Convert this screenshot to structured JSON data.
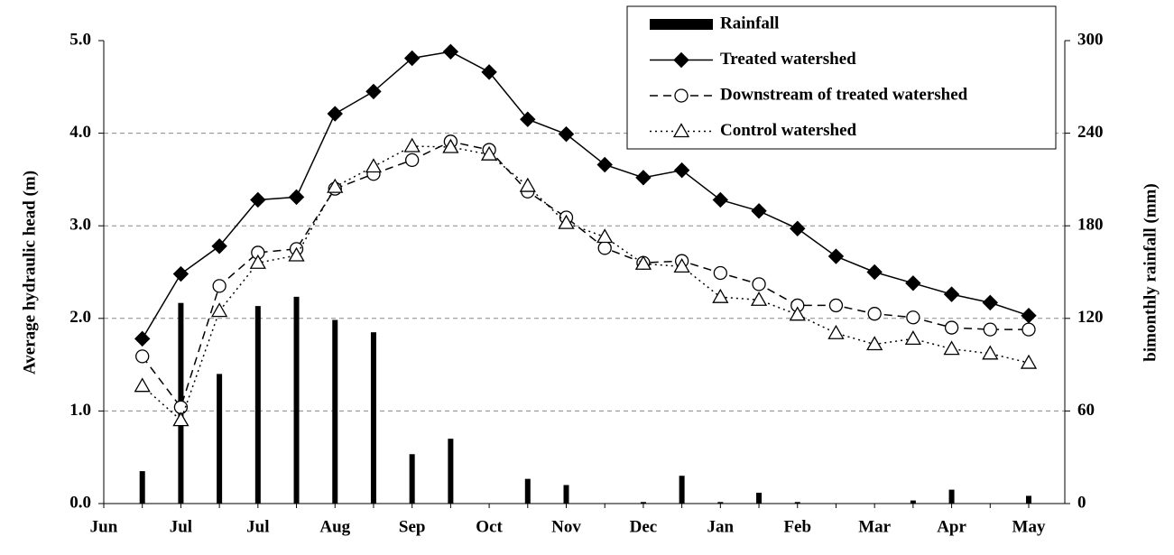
{
  "chart_data": {
    "type": "line",
    "y_label": "Average hydraulic head (m)",
    "y2_label": "bimonthly rainfall (mm)",
    "categories": [
      "Jun",
      null,
      "Jul",
      null,
      "Jul",
      null,
      "Aug",
      null,
      "Sep",
      null,
      "Oct",
      null,
      "Nov",
      null,
      "Dec",
      null,
      "Jan",
      null,
      "Feb",
      null,
      "Mar",
      null,
      "Apr",
      null,
      "May"
    ],
    "ylim": [
      0,
      5
    ],
    "yticks": [
      {
        "value": 0,
        "label": "0.0"
      },
      {
        "value": 1,
        "label": "1.0"
      },
      {
        "value": 2,
        "label": "2.0"
      },
      {
        "value": 3,
        "label": "3.0"
      },
      {
        "value": 4,
        "label": "4.0"
      },
      {
        "value": 5,
        "label": "5.0"
      }
    ],
    "y2lim": [
      0,
      300
    ],
    "y2ticks": [
      0,
      60,
      120,
      180,
      240,
      300
    ],
    "grid": true,
    "legend": "upper right",
    "series": [
      {
        "name": "Rainfall",
        "type": "bar",
        "axis": "y2",
        "color": "#000000",
        "values": [
          null,
          21,
          130,
          84,
          128,
          134,
          119,
          111,
          32,
          42,
          0,
          16,
          12,
          0,
          1,
          18,
          1,
          7,
          1,
          0,
          0,
          2,
          9,
          0,
          5
        ]
      },
      {
        "name": "Treated watershed",
        "color": "#000000",
        "dash": "solid",
        "marker": "diamond",
        "values": [
          null,
          1.78,
          2.48,
          2.78,
          3.28,
          3.31,
          4.21,
          4.45,
          4.81,
          4.88,
          4.66,
          4.15,
          3.99,
          3.66,
          3.52,
          3.6,
          3.28,
          3.16,
          2.97,
          2.67,
          2.5,
          2.38,
          2.26,
          2.17,
          2.03
        ]
      },
      {
        "name": "Downstream of treated watershed",
        "color": "#000000",
        "dash": "dashed",
        "marker": "circle",
        "values": [
          null,
          1.59,
          1.04,
          2.35,
          2.71,
          2.75,
          3.4,
          3.56,
          3.71,
          3.91,
          3.82,
          3.37,
          3.09,
          2.76,
          2.6,
          2.62,
          2.49,
          2.37,
          2.14,
          2.14,
          2.05,
          2.01,
          1.9,
          1.88,
          1.88
        ]
      },
      {
        "name": "Control watershed",
        "color": "#000000",
        "dash": "dotted",
        "marker": "triangle",
        "values": [
          null,
          1.27,
          0.9,
          2.08,
          2.6,
          2.68,
          3.42,
          3.64,
          3.86,
          3.85,
          3.77,
          3.43,
          3.03,
          2.88,
          2.59,
          2.56,
          2.23,
          2.2,
          2.04,
          1.84,
          1.72,
          1.78,
          1.67,
          1.62,
          1.52
        ]
      }
    ]
  }
}
